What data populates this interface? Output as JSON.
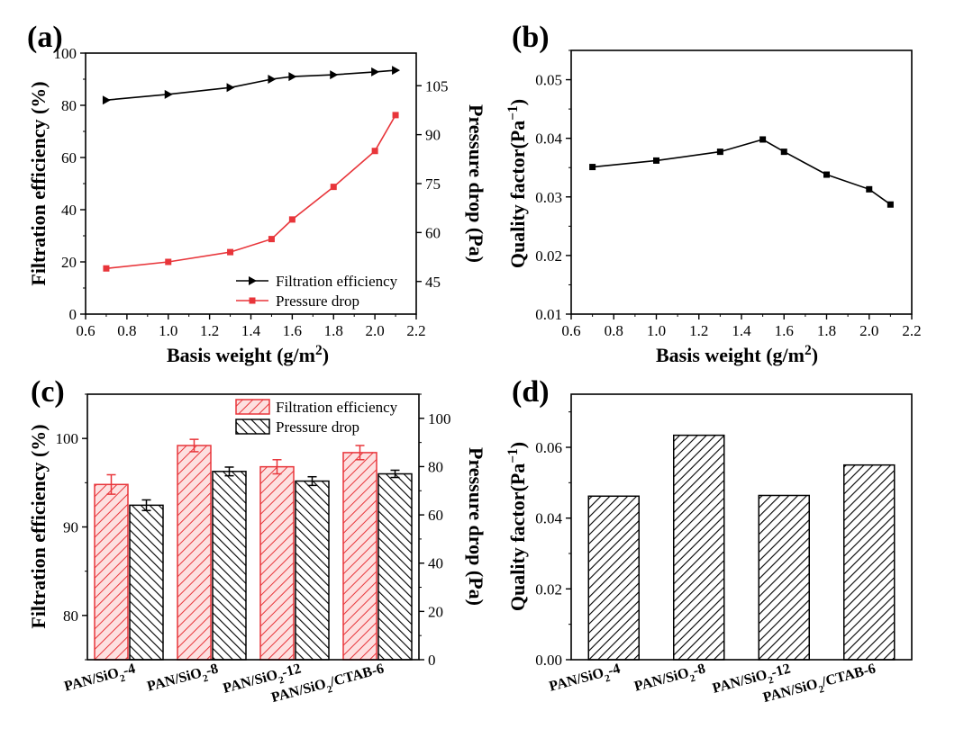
{
  "colors": {
    "black": "#000000",
    "red": "#e8353a",
    "red_fill": "#fde0e0"
  },
  "chart_data": [
    {
      "panel": "(a)",
      "type": "line",
      "xlabel": "Basis weight (g/m²)",
      "ylabel": "Filtration efficiency (%)",
      "y2label": "Pressure drop (Pa)",
      "xlim": [
        0.6,
        2.2
      ],
      "xticks": [
        "0.6",
        "0.8",
        "1.0",
        "1.2",
        "1.4",
        "1.6",
        "1.8",
        "2.0",
        "2.2"
      ],
      "ylim": [
        0,
        100
      ],
      "yticks": [
        "0",
        "20",
        "40",
        "60",
        "80",
        "100"
      ],
      "y2lim": [
        35,
        115
      ],
      "y2ticks": [
        "45",
        "60",
        "75",
        "90",
        "105"
      ],
      "legend_position": "bottom-right",
      "series": [
        {
          "name": "Filtration efficiency",
          "axis": "left",
          "color": "#000000",
          "marker": "triangle-right",
          "x": [
            0.7,
            1.0,
            1.3,
            1.5,
            1.6,
            1.8,
            2.0,
            2.1
          ],
          "y": [
            82,
            84.2,
            86.8,
            90,
            91,
            91.7,
            92.8,
            93.4
          ]
        },
        {
          "name": "Pressure drop",
          "axis": "right",
          "color": "#e8353a",
          "marker": "square",
          "x": [
            0.7,
            1.0,
            1.3,
            1.5,
            1.6,
            1.8,
            2.0,
            2.1
          ],
          "y": [
            49,
            51,
            54,
            58,
            64,
            74,
            85,
            96
          ]
        }
      ]
    },
    {
      "panel": "(b)",
      "type": "line",
      "xlabel": "Basis weight (g/m²)",
      "ylabel": "Quality factor(Pa⁻¹)",
      "xlim": [
        0.6,
        2.2
      ],
      "xticks": [
        "0.6",
        "0.8",
        "1.0",
        "1.2",
        "1.4",
        "1.6",
        "1.8",
        "2.0",
        "2.2"
      ],
      "ylim": [
        0.01,
        0.055
      ],
      "yticks": [
        "0.01",
        "0.02",
        "0.03",
        "0.04",
        "0.05"
      ],
      "series": [
        {
          "color": "#000000",
          "marker": "square",
          "x": [
            0.7,
            1.0,
            1.3,
            1.5,
            1.6,
            1.8,
            2.0,
            2.1
          ],
          "y": [
            0.0351,
            0.0362,
            0.0377,
            0.0398,
            0.0377,
            0.0338,
            0.0313,
            0.0287
          ]
        }
      ]
    },
    {
      "panel": "(c)",
      "type": "bar",
      "categories": [
        "PAN/SiO₂-4",
        "PAN/SiO₂-8",
        "PAN/SiO₂-12",
        "PAN/SiO₂/CTAB-6"
      ],
      "ylabel": "Filtration efficiency (%)",
      "y2label": "Pressure drop (Pa)",
      "ylim": [
        75,
        105
      ],
      "yticks": [
        "80",
        "90",
        "100"
      ],
      "y2lim": [
        0,
        110
      ],
      "y2ticks": [
        "0",
        "20",
        "40",
        "60",
        "80",
        "100"
      ],
      "legend_position": "top-right",
      "series": [
        {
          "name": "Filtration efficiency",
          "axis": "left",
          "color": "#e8353a",
          "pattern": "hatch-right",
          "values": [
            94.8,
            99.2,
            96.8,
            98.4
          ],
          "errors": [
            1.1,
            0.7,
            0.8,
            0.8
          ]
        },
        {
          "name": "Pressure drop",
          "axis": "right",
          "color": "#000000",
          "pattern": "hatch-left",
          "values": [
            64,
            78,
            74,
            77
          ],
          "errors": [
            2.2,
            1.8,
            1.8,
            1.5
          ]
        }
      ]
    },
    {
      "panel": "(d)",
      "type": "bar",
      "categories": [
        "PAN/SiO₂-4",
        "PAN/SiO₂-8",
        "PAN/SiO₂-12",
        "PAN/SiO₂/CTAB-6"
      ],
      "ylabel": "Quality factor(Pa⁻¹)",
      "ylim": [
        0,
        0.075
      ],
      "yticks": [
        "0.00",
        "0.02",
        "0.04",
        "0.06"
      ],
      "series": [
        {
          "color": "#000000",
          "pattern": "hatch-right",
          "values": [
            0.0462,
            0.0634,
            0.0464,
            0.055
          ]
        }
      ]
    }
  ]
}
